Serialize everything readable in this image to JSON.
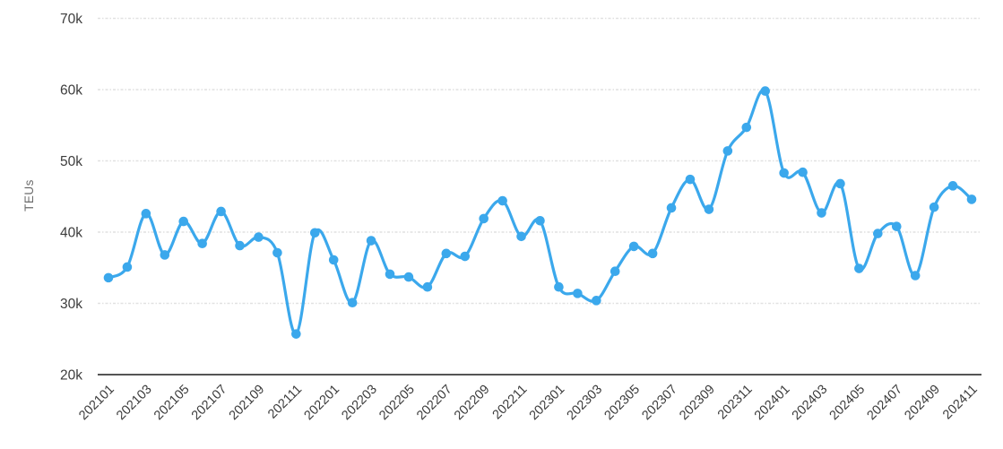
{
  "chart_data": {
    "type": "line",
    "title": "",
    "xlabel": "",
    "ylabel": "TEUs",
    "ylim": [
      20000,
      70000
    ],
    "y_ticks": [
      {
        "value": 20000,
        "label": "20k"
      },
      {
        "value": 30000,
        "label": "30k"
      },
      {
        "value": 40000,
        "label": "40k"
      },
      {
        "value": 50000,
        "label": "50k"
      },
      {
        "value": 60000,
        "label": "60k"
      },
      {
        "value": 70000,
        "label": "70k"
      }
    ],
    "x": [
      "202101",
      "202102",
      "202103",
      "202104",
      "202105",
      "202106",
      "202107",
      "202108",
      "202109",
      "202110",
      "202111",
      "202112",
      "202201",
      "202202",
      "202203",
      "202204",
      "202205",
      "202206",
      "202207",
      "202208",
      "202209",
      "202210",
      "202211",
      "202212",
      "202301",
      "202302",
      "202303",
      "202304",
      "202305",
      "202306",
      "202307",
      "202308",
      "202309",
      "202310",
      "202311",
      "202312",
      "202401",
      "202402",
      "202403",
      "202404",
      "202405",
      "202406",
      "202407",
      "202408",
      "202409",
      "202410",
      "202411"
    ],
    "x_tick_interval": 2,
    "x_tick_labels_visible": [
      "202101",
      "202103",
      "202105",
      "202107",
      "202109",
      "202111",
      "202201",
      "202203",
      "202205",
      "202207",
      "202209",
      "202211",
      "202301",
      "202303",
      "202305",
      "202307",
      "202309",
      "202311",
      "202401",
      "202403",
      "202405",
      "202407",
      "202409",
      "202411"
    ],
    "series": [
      {
        "name": "TEUs",
        "color": "#3BA8EC",
        "values": [
          33600,
          35100,
          42600,
          36800,
          41500,
          38400,
          42900,
          38100,
          39300,
          37100,
          25700,
          39900,
          36100,
          30100,
          38800,
          34100,
          33700,
          32300,
          37000,
          36600,
          41900,
          44400,
          39400,
          41600,
          32300,
          31400,
          30400,
          34500,
          38000,
          37000,
          43400,
          47400,
          43200,
          51400,
          54700,
          59800,
          48300,
          48400,
          42700,
          46800,
          34900,
          39800,
          40800,
          33900,
          43500,
          46500,
          44600
        ]
      }
    ],
    "line_style": "smooth",
    "marker": "circle",
    "grid": {
      "horizontal": true,
      "vertical": false,
      "style": "dashed",
      "color": "#e1e1e1"
    },
    "legend_position": "none",
    "colors": {
      "line": "#3BA8EC",
      "marker": "#3BA8EC",
      "axis_line": "#555555",
      "y_tick_label": "#3c3c3c",
      "x_tick_label": "#3c3c3c",
      "axis_title": "#6b6b6b",
      "background": "#ffffff"
    }
  }
}
